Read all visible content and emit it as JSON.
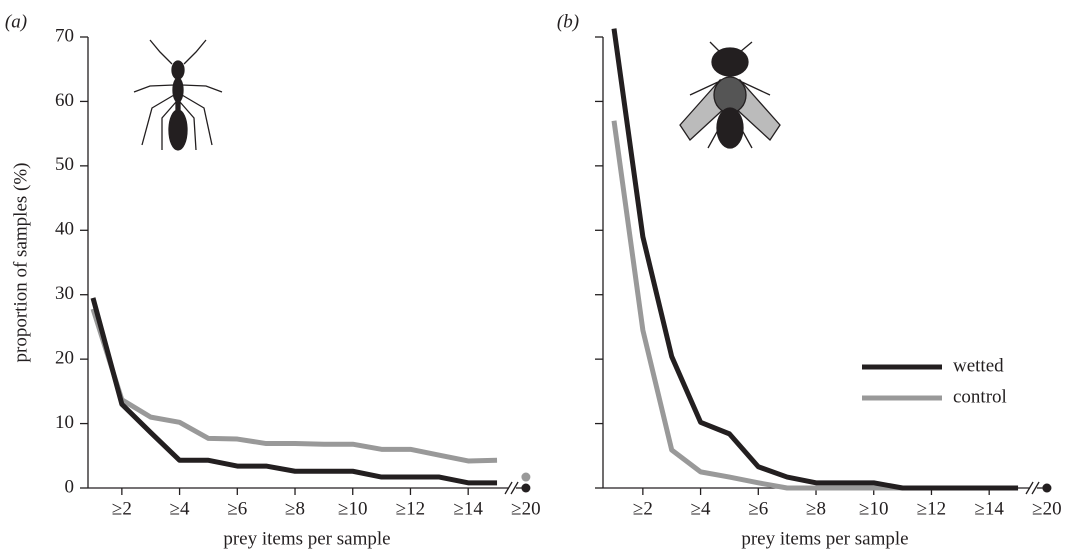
{
  "chart_data": [
    {
      "type": "line",
      "panel_label": "(a)",
      "xlabel": "prey items per sample",
      "ylabel": "proportion of samples (%)",
      "categories": [
        null,
        "≥2",
        null,
        "≥4",
        null,
        "≥6",
        null,
        "≥8",
        null,
        "≥10",
        null,
        "≥12",
        null,
        "≥14",
        null,
        "≥20"
      ],
      "ylim": [
        0,
        70
      ],
      "yticks": [
        0,
        10,
        20,
        30,
        40,
        50,
        60,
        70
      ],
      "ytick_labels": true,
      "icon": "ant",
      "series": [
        {
          "name": "wetted",
          "color": "#231f20",
          "values": [
            29.5,
            13,
            8.6,
            4.3,
            4.3,
            3.4,
            3.4,
            2.6,
            2.6,
            2.6,
            1.7,
            1.7,
            1.7,
            0.8,
            0.8,
            0
          ]
        },
        {
          "name": "control",
          "color": "#999999",
          "values": [
            27.8,
            13.7,
            11,
            10.2,
            7.7,
            7.6,
            6.9,
            6.9,
            6.8,
            6.8,
            6,
            6,
            5.1,
            4.2,
            4.3,
            1.7
          ]
        }
      ]
    },
    {
      "type": "line",
      "panel_label": "(b)",
      "xlabel": "prey items per sample",
      "categories": [
        null,
        "≥2",
        null,
        "≥4",
        null,
        "≥6",
        null,
        "≥8",
        null,
        "≥10",
        null,
        "≥12",
        null,
        "≥14",
        null,
        "≥20"
      ],
      "ylim": [
        0,
        70
      ],
      "yticks": [
        0,
        10,
        20,
        30,
        40,
        50,
        60,
        70
      ],
      "ytick_labels": false,
      "icon": "fly",
      "legend": "center-right",
      "series": [
        {
          "name": "wetted",
          "color": "#231f20",
          "values": [
            71.3,
            39,
            20.4,
            10.2,
            8.4,
            3.3,
            1.7,
            0.8,
            0.8,
            0.8,
            0,
            0,
            0,
            0,
            0,
            0
          ]
        },
        {
          "name": "control",
          "color": "#999999",
          "values": [
            57,
            24.5,
            5.9,
            2.5,
            1.7,
            0.8,
            0,
            0,
            0,
            0,
            0,
            0,
            0,
            0,
            0,
            0
          ]
        }
      ]
    }
  ]
}
